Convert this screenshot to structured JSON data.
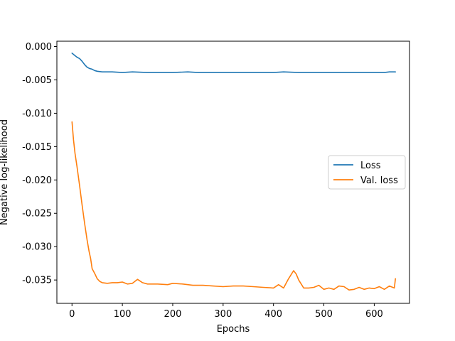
{
  "chart_data": {
    "type": "line",
    "title": "",
    "xlabel": "Epochs",
    "ylabel": "Negative log-likelihood",
    "xlim": [
      -30,
      670
    ],
    "ylim": [
      -0.0385,
      0.0008
    ],
    "xticks": [
      0,
      100,
      200,
      300,
      400,
      500,
      600
    ],
    "xtick_labels": [
      "0",
      "100",
      "200",
      "300",
      "400",
      "500",
      "600"
    ],
    "yticks": [
      0.0,
      -0.005,
      -0.01,
      -0.015,
      -0.02,
      -0.025,
      -0.03,
      -0.035
    ],
    "ytick_labels": [
      "0.000",
      "-0.005",
      "-0.010",
      "-0.015",
      "-0.020",
      "-0.025",
      "-0.030",
      "-0.035"
    ],
    "grid": false,
    "legend_position": "center-right",
    "series": [
      {
        "name": "Loss",
        "color": "#1f77b4",
        "x": [
          0,
          5,
          10,
          15,
          20,
          25,
          30,
          35,
          40,
          45,
          50,
          60,
          70,
          80,
          100,
          120,
          150,
          180,
          200,
          230,
          250,
          280,
          300,
          330,
          350,
          380,
          400,
          420,
          450,
          480,
          500,
          520,
          540,
          560,
          580,
          600,
          620,
          630,
          642
        ],
        "y": [
          -0.001,
          -0.0013,
          -0.0016,
          -0.0018,
          -0.0022,
          -0.0027,
          -0.0031,
          -0.0033,
          -0.0034,
          -0.0036,
          -0.0037,
          -0.0038,
          -0.0038,
          -0.0038,
          -0.0039,
          -0.0038,
          -0.0039,
          -0.0039,
          -0.0039,
          -0.0038,
          -0.0039,
          -0.0039,
          -0.0039,
          -0.0039,
          -0.0039,
          -0.0039,
          -0.0039,
          -0.0038,
          -0.0039,
          -0.0039,
          -0.0039,
          -0.0039,
          -0.0039,
          -0.0039,
          -0.0039,
          -0.0039,
          -0.0039,
          -0.0038,
          -0.0038
        ]
      },
      {
        "name": "Val. loss",
        "color": "#ff7f0e",
        "x": [
          0,
          3,
          6,
          10,
          15,
          20,
          25,
          30,
          34,
          37,
          40,
          45,
          50,
          55,
          60,
          70,
          80,
          90,
          100,
          110,
          120,
          130,
          140,
          150,
          170,
          190,
          200,
          220,
          240,
          260,
          280,
          300,
          320,
          340,
          360,
          380,
          400,
          410,
          420,
          430,
          440,
          445,
          450,
          460,
          470,
          480,
          490,
          500,
          510,
          520,
          530,
          540,
          550,
          560,
          570,
          580,
          590,
          600,
          610,
          620,
          630,
          640,
          642
        ],
        "y": [
          -0.0113,
          -0.014,
          -0.016,
          -0.018,
          -0.0208,
          -0.0237,
          -0.0265,
          -0.029,
          -0.0307,
          -0.0318,
          -0.0333,
          -0.034,
          -0.0348,
          -0.0352,
          -0.0354,
          -0.0355,
          -0.0354,
          -0.0354,
          -0.0353,
          -0.0356,
          -0.0355,
          -0.0349,
          -0.0354,
          -0.0356,
          -0.0356,
          -0.0357,
          -0.0355,
          -0.0356,
          -0.0358,
          -0.0358,
          -0.0359,
          -0.036,
          -0.0359,
          -0.0359,
          -0.036,
          -0.0361,
          -0.0362,
          -0.0357,
          -0.0362,
          -0.0348,
          -0.0336,
          -0.0341,
          -0.035,
          -0.0362,
          -0.0362,
          -0.0361,
          -0.0358,
          -0.0364,
          -0.0362,
          -0.0364,
          -0.0359,
          -0.036,
          -0.0365,
          -0.0364,
          -0.0361,
          -0.0364,
          -0.0362,
          -0.0363,
          -0.036,
          -0.0364,
          -0.0359,
          -0.0362,
          -0.0348
        ]
      }
    ]
  }
}
